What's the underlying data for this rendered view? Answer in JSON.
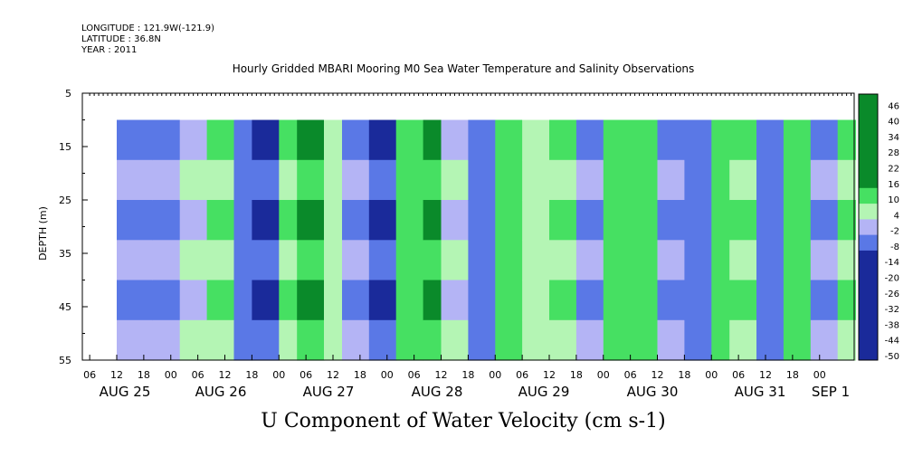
{
  "header": {
    "longitude": "LONGITUDE : 121.9W(-121.9)",
    "latitude": "LATITUDE : 36.8N",
    "year": "YEAR : 2011",
    "title": "Hourly Gridded MBARI Mooring M0 Sea Water Temperature and Salinity Observations"
  },
  "bottom_title": "U Component of Water Velocity (cm s-1)",
  "colors": {
    "positive_light": "#b4f5b4",
    "positive_mid": "#46e062",
    "positive_dark": "#0a8a2a",
    "negative_light": "#b4b4f5",
    "negative_mid": "#5a78e6",
    "negative_dark": "#1a2a9a"
  },
  "chart_data": {
    "type": "heatmap",
    "title": "Hourly Gridded MBARI Mooring M0 Sea Water Temperature and Salinity Observations",
    "ylabel": "DEPTH (m)",
    "xlabel": "U Component of Water Velocity (cm s-1)",
    "ylim": [
      55,
      5
    ],
    "y_ticks": [
      5,
      15,
      25,
      35,
      45,
      55
    ],
    "x_hour_ticks": [
      "06",
      "12",
      "18",
      "00",
      "06",
      "12",
      "18",
      "00",
      "06",
      "12",
      "18",
      "00",
      "06",
      "12",
      "18",
      "00",
      "06",
      "12",
      "18",
      "00",
      "06",
      "12",
      "18",
      "00",
      "06",
      "12",
      "18",
      "00"
    ],
    "x_date_labels": [
      "AUG 25",
      "AUG 26",
      "AUG 27",
      "AUG 28",
      "AUG 29",
      "AUG 30",
      "AUG 31",
      "SEP  1"
    ],
    "data_depth_range": [
      10,
      55
    ],
    "colorbar": {
      "levels": [
        46,
        40,
        34,
        28,
        22,
        16,
        10,
        4,
        -2,
        -8,
        -14,
        -20,
        -26,
        -32,
        -38,
        -44,
        -50
      ]
    },
    "description_hours": {
      "start": "2011-08-25 12:00",
      "end": "2011-09-01 06:00"
    },
    "columns": [
      {
        "hour": 0,
        "v": -6
      },
      {
        "hour": 8,
        "v": -8
      },
      {
        "hour": 14,
        "v": -2
      },
      {
        "hour": 20,
        "v": 8
      },
      {
        "hour": 26,
        "v": -10
      },
      {
        "hour": 30,
        "v": -14
      },
      {
        "hour": 36,
        "v": 6
      },
      {
        "hour": 40,
        "v": 14
      },
      {
        "hour": 46,
        "v": 4
      },
      {
        "hour": 50,
        "v": -8
      },
      {
        "hour": 56,
        "v": -14
      },
      {
        "hour": 62,
        "v": 10
      },
      {
        "hour": 68,
        "v": 16
      },
      {
        "hour": 72,
        "v": -4
      },
      {
        "hour": 78,
        "v": -10
      },
      {
        "hour": 84,
        "v": 12
      },
      {
        "hour": 90,
        "v": 4
      },
      {
        "hour": 96,
        "v": 8
      },
      {
        "hour": 102,
        "v": -6
      },
      {
        "hour": 108,
        "v": 10
      },
      {
        "hour": 114,
        "v": 12
      },
      {
        "hour": 120,
        "v": -8
      },
      {
        "hour": 126,
        "v": -12
      },
      {
        "hour": 132,
        "v": 10
      },
      {
        "hour": 136,
        "v": 6
      },
      {
        "hour": 142,
        "v": -10
      },
      {
        "hour": 148,
        "v": 10
      },
      {
        "hour": 154,
        "v": -6
      },
      {
        "hour": 160,
        "v": 8
      },
      {
        "hour": 164,
        "v": 14
      }
    ]
  }
}
